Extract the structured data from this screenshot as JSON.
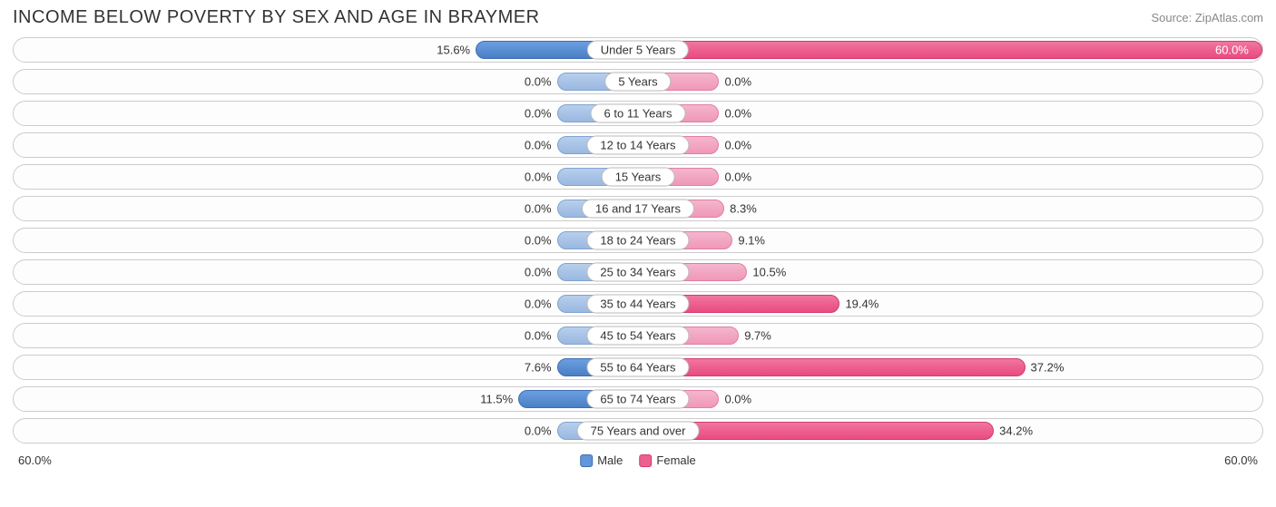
{
  "title": "INCOME BELOW POVERTY BY SEX AND AGE IN BRAYMER",
  "source": "Source: ZipAtlas.com",
  "axis_max": 60.0,
  "min_bar_pct": 13.0,
  "axis_left_label": "60.0%",
  "axis_right_label": "60.0%",
  "legend": {
    "male": "Male",
    "female": "Female"
  },
  "colors": {
    "male_strong": "#5a8fd4",
    "male_light": "#a8c3e6",
    "female_strong": "#ed5f8f",
    "female_light": "#f2a6c2",
    "track_border": "#cccccc",
    "text": "#333333",
    "source_text": "#888888",
    "background": "#ffffff"
  },
  "rows": [
    {
      "label": "Under 5 Years",
      "male": 15.6,
      "female": 60.0
    },
    {
      "label": "5 Years",
      "male": 0.0,
      "female": 0.0
    },
    {
      "label": "6 to 11 Years",
      "male": 0.0,
      "female": 0.0
    },
    {
      "label": "12 to 14 Years",
      "male": 0.0,
      "female": 0.0
    },
    {
      "label": "15 Years",
      "male": 0.0,
      "female": 0.0
    },
    {
      "label": "16 and 17 Years",
      "male": 0.0,
      "female": 8.3
    },
    {
      "label": "18 to 24 Years",
      "male": 0.0,
      "female": 9.1
    },
    {
      "label": "25 to 34 Years",
      "male": 0.0,
      "female": 10.5
    },
    {
      "label": "35 to 44 Years",
      "male": 0.0,
      "female": 19.4
    },
    {
      "label": "45 to 54 Years",
      "male": 0.0,
      "female": 9.7
    },
    {
      "label": "55 to 64 Years",
      "male": 7.6,
      "female": 37.2
    },
    {
      "label": "65 to 74 Years",
      "male": 11.5,
      "female": 0.0
    },
    {
      "label": "75 Years and over",
      "male": 0.0,
      "female": 34.2
    }
  ]
}
